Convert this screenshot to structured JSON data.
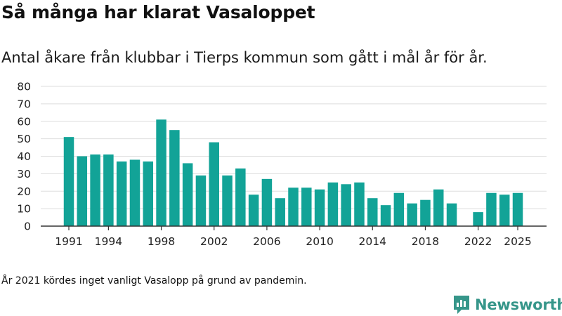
{
  "title": "Så många har klarat Vasaloppet",
  "subtitle": "Antal åkare från klubbar i Tierps kommun som gått i mål år för år.",
  "footnote": "År 2021 kördes inget vanligt Vasalopp på grund av pandemin.",
  "brand": {
    "name": "Newsworthy",
    "icon": "newsworthy-logo-icon",
    "color": "#36968a"
  },
  "colors": {
    "bar": "#12a397",
    "grid": "#dddddd",
    "axis": "#333333"
  },
  "chart_data": {
    "type": "bar",
    "categories": [
      1991,
      1992,
      1993,
      1994,
      1995,
      1996,
      1997,
      1998,
      1999,
      2000,
      2001,
      2002,
      2003,
      2004,
      2005,
      2006,
      2007,
      2008,
      2009,
      2010,
      2011,
      2012,
      2013,
      2014,
      2015,
      2016,
      2017,
      2018,
      2019,
      2020,
      2021,
      2022,
      2023,
      2024,
      2025
    ],
    "values": [
      51,
      40,
      41,
      41,
      37,
      38,
      37,
      61,
      55,
      36,
      29,
      48,
      29,
      33,
      18,
      27,
      16,
      22,
      22,
      21,
      25,
      24,
      25,
      16,
      12,
      19,
      13,
      15,
      21,
      13,
      null,
      8,
      19,
      18,
      19
    ],
    "xticks": [
      "1991",
      "1994",
      "1998",
      "2002",
      "2006",
      "2010",
      "2014",
      "2018",
      "2022",
      "2025"
    ],
    "yticks": [
      0,
      10,
      20,
      30,
      40,
      50,
      60,
      70,
      80
    ],
    "ylim": [
      0,
      80
    ],
    "xlabel": "",
    "ylabel": "",
    "grid": true,
    "legend": "none"
  }
}
